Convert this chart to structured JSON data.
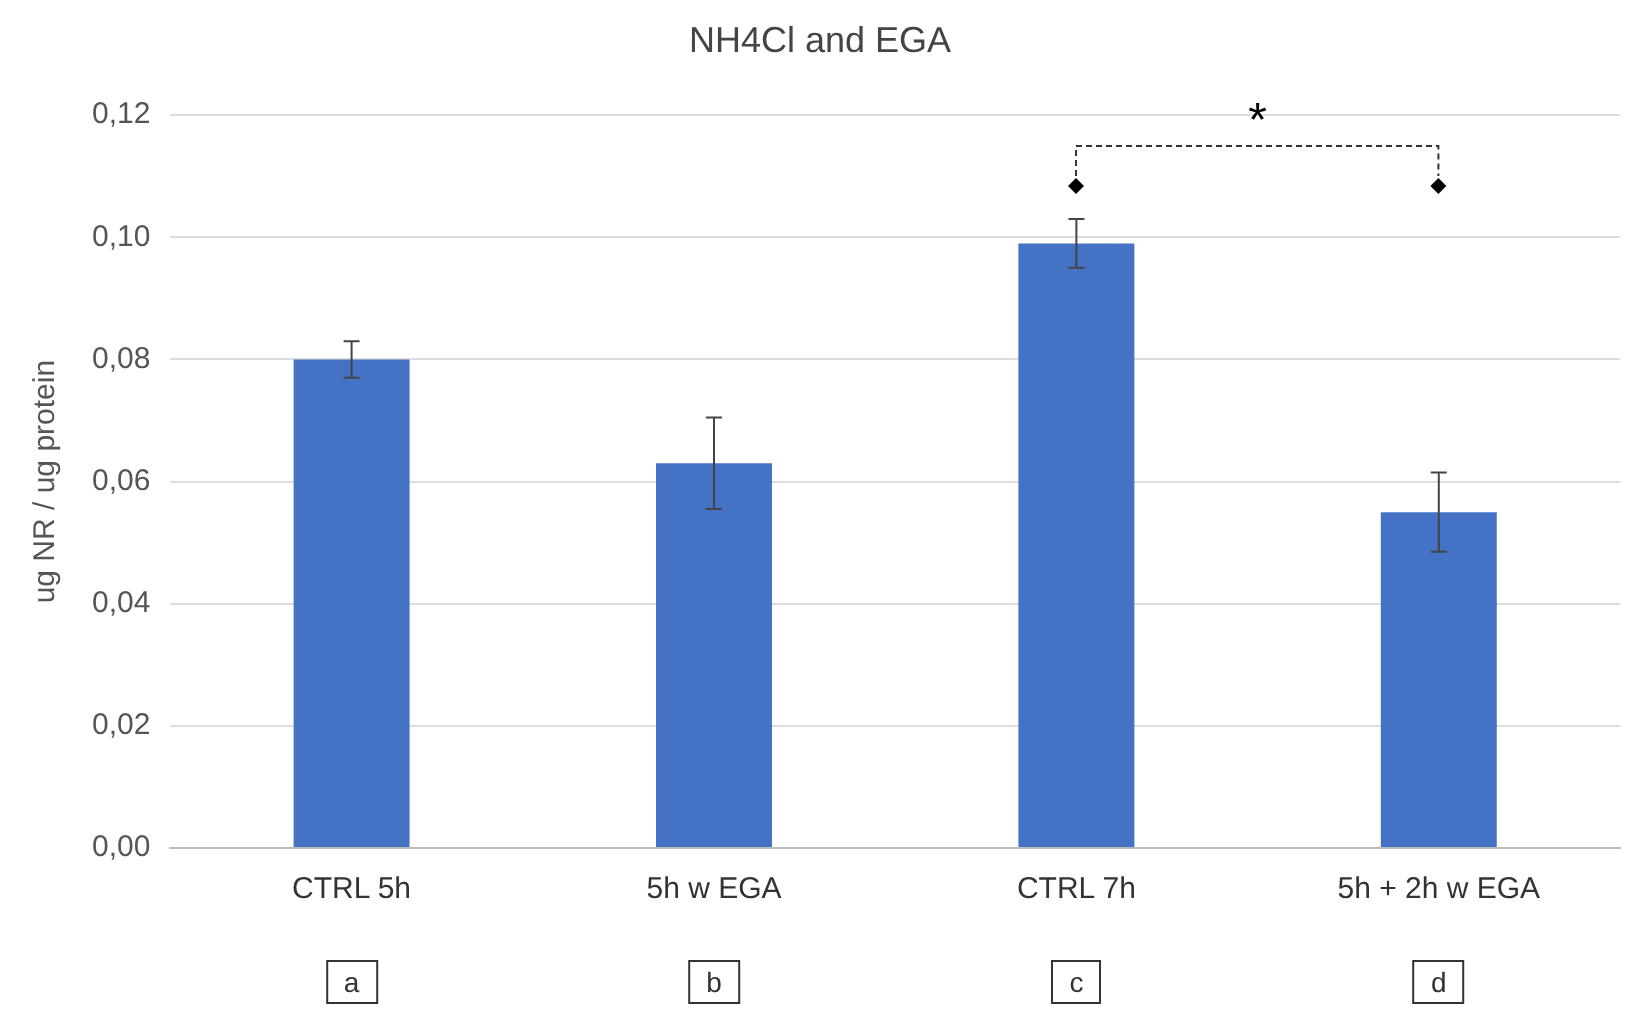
{
  "chart_data": {
    "type": "bar",
    "title": "NH4Cl and EGA",
    "ylabel": "ug NR / ug protein",
    "categories": [
      "CTRL 5h",
      "5h w EGA",
      "CTRL 7h",
      "5h + 2h w EGA"
    ],
    "values": [
      0.08,
      0.063,
      0.099,
      0.055
    ],
    "errors": [
      0.003,
      0.0075,
      0.004,
      0.0065
    ],
    "color": "#4472c4",
    "ylim": [
      0,
      0.12
    ],
    "yticks": [
      {
        "value": 0,
        "label": "0,00"
      },
      {
        "value": 0.02,
        "label": "0,02"
      },
      {
        "value": 0.04,
        "label": "0,04"
      },
      {
        "value": 0.06,
        "label": "0,06"
      },
      {
        "value": 0.08,
        "label": "0,08"
      },
      {
        "value": 0.1,
        "label": "0,10"
      },
      {
        "value": 0.12,
        "label": "0,12"
      }
    ],
    "grid": "y",
    "annotations": [
      "*",
      "a",
      "b",
      "c",
      "d"
    ]
  }
}
